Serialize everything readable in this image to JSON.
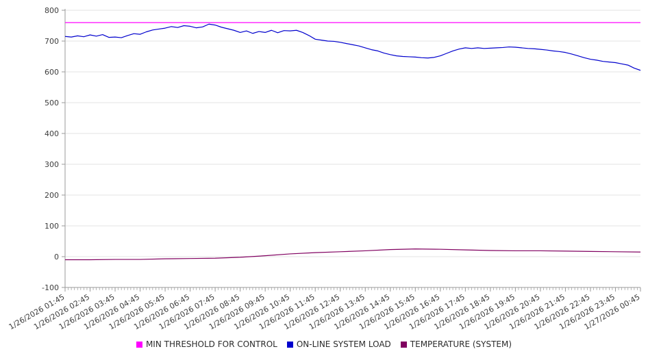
{
  "chart_data": {
    "type": "line",
    "title": "",
    "xlabel": "",
    "ylabel": "",
    "ylim": [
      -100,
      800
    ],
    "y_ticks": [
      800,
      700,
      600,
      500,
      400,
      300,
      200,
      100,
      0,
      -100
    ],
    "grid": "horizontal",
    "legend_position": "bottom",
    "x_labels": [
      "1/26/2026 01:45",
      "1/26/2026 02:45",
      "1/26/2026 03:45",
      "1/26/2026 04:45",
      "1/26/2026 05:45",
      "1/26/2026 06:45",
      "1/26/2026 07:45",
      "1/26/2026 08:45",
      "1/26/2026 09:45",
      "1/26/2026 10:45",
      "1/26/2026 11:45",
      "1/26/2026 12:45",
      "1/26/2026 13:45",
      "1/26/2026 14:45",
      "1/26/2026 15:45",
      "1/26/2026 16:45",
      "1/26/2026 17:45",
      "1/26/2026 18:45",
      "1/26/2026 19:45",
      "1/26/2026 20:45",
      "1/26/2026 21:45",
      "1/26/2026 22:45",
      "1/26/2026 23:45",
      "1/27/2026 00:45"
    ],
    "series": [
      {
        "name": "MIN THRESHOLD FOR CONTROL",
        "color": "#FF00FF",
        "values": [
          760,
          760
        ]
      },
      {
        "name": "ON-LINE SYSTEM LOAD",
        "color": "#0000CD",
        "values": [
          715,
          713,
          717,
          714,
          720,
          716,
          721,
          712,
          713,
          711,
          718,
          724,
          722,
          730,
          736,
          739,
          742,
          747,
          744,
          750,
          748,
          743,
          746,
          755,
          752,
          745,
          740,
          735,
          728,
          733,
          725,
          731,
          728,
          735,
          727,
          734,
          733,
          735,
          728,
          718,
          706,
          703,
          700,
          699,
          696,
          692,
          688,
          684,
          678,
          672,
          668,
          661,
          656,
          652,
          650,
          649,
          648,
          646,
          645,
          647,
          652,
          660,
          668,
          674,
          678,
          676,
          678,
          676,
          677,
          678,
          679,
          681,
          680,
          678,
          676,
          675,
          673,
          671,
          668,
          666,
          663,
          658,
          652,
          646,
          641,
          638,
          634,
          632,
          630,
          626,
          622,
          612,
          605
        ]
      },
      {
        "name": "TEMPERATURE (SYSTEM)",
        "color": "#800060",
        "values": [
          -10,
          -10,
          -9,
          -9,
          -7,
          -6,
          -5,
          -2,
          3,
          9,
          13,
          16,
          19,
          23,
          25,
          24,
          22,
          20,
          19,
          19,
          18,
          17,
          16,
          15
        ]
      }
    ]
  }
}
